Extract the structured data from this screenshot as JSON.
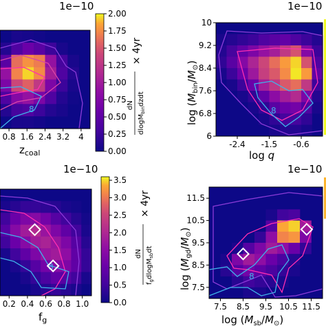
{
  "chart_data": [
    {
      "type": "heatmap",
      "panel": "top-left",
      "multiplier": "1e−10",
      "xlabel": "z_coal",
      "ylabel": "",
      "xticks": [
        "0.8",
        "1.6",
        "2.4",
        "3.2",
        "4"
      ],
      "xlim": [
        0.4,
        4.4
      ],
      "colorbar": {
        "label": "dN / dlogM_bin dzdt × 4yr",
        "ticks": [
          "0.00",
          "0.25",
          "0.50",
          "0.75",
          "1.00",
          "1.25",
          "1.50",
          "1.75",
          "2.00"
        ],
        "range": [
          0,
          2.0
        ]
      },
      "grid": [
        [
          0.0,
          0.05,
          0.04,
          0.02,
          0.0,
          0.0,
          0.0,
          0.0
        ],
        [
          0.1,
          0.3,
          0.45,
          0.35,
          0.2,
          0.05,
          0.0,
          0.0
        ],
        [
          0.35,
          1.4,
          1.65,
          1.5,
          0.7,
          0.25,
          0.05,
          0.0
        ],
        [
          0.7,
          1.55,
          1.9,
          1.6,
          0.8,
          0.3,
          0.1,
          0.0
        ],
        [
          0.55,
          1.1,
          1.3,
          1.0,
          0.55,
          0.2,
          0.05,
          0.0
        ],
        [
          0.3,
          0.6,
          0.7,
          0.55,
          0.3,
          0.1,
          0.02,
          0.0
        ],
        [
          0.1,
          0.25,
          0.3,
          0.2,
          0.1,
          0.05,
          0.0,
          0.0
        ],
        [
          0.0,
          0.05,
          0.05,
          0.03,
          0.0,
          0.0,
          0.0,
          0.0
        ]
      ],
      "contour_labels": [
        "8"
      ]
    },
    {
      "type": "heatmap",
      "panel": "top-right",
      "multiplier": "1e−10",
      "xlabel": "log q",
      "ylabel": "log (M_bin / M_⊙)",
      "xticks": [
        "-2.4",
        "-1.5",
        "-0.6"
      ],
      "xlim": [
        -3.0,
        0.0
      ],
      "yticks": [
        "6",
        "6.8",
        "7.6",
        "8.4",
        "9.2",
        "10"
      ],
      "ylim": [
        6.0,
        10.0
      ],
      "grid": [
        [
          0.0,
          0.0,
          0.0,
          0.0,
          0.0,
          0.0,
          0.0,
          0.0,
          0.0,
          0.0
        ],
        [
          0.05,
          0.1,
          0.15,
          0.2,
          0.3,
          0.35,
          0.4,
          0.3,
          0.2,
          0.1
        ],
        [
          0.1,
          0.25,
          0.4,
          0.55,
          0.7,
          0.8,
          1.0,
          1.2,
          0.6,
          0.2
        ],
        [
          0.15,
          0.35,
          0.6,
          0.85,
          1.1,
          1.4,
          1.7,
          1.9,
          1.2,
          0.3
        ],
        [
          0.05,
          0.2,
          0.45,
          0.75,
          1.05,
          1.25,
          1.6,
          1.95,
          1.7,
          0.4
        ],
        [
          0.0,
          0.05,
          0.2,
          0.45,
          0.8,
          1.0,
          1.25,
          1.4,
          1.0,
          0.2
        ],
        [
          0.0,
          0.0,
          0.05,
          0.15,
          0.4,
          0.65,
          0.8,
          0.9,
          0.55,
          0.1
        ],
        [
          0.0,
          0.0,
          0.0,
          0.05,
          0.15,
          0.35,
          0.45,
          0.5,
          0.3,
          0.05
        ],
        [
          0.0,
          0.0,
          0.0,
          0.0,
          0.05,
          0.15,
          0.25,
          0.25,
          0.15,
          0.0
        ],
        [
          0.0,
          0.0,
          0.0,
          0.0,
          0.0,
          0.05,
          0.1,
          0.1,
          0.05,
          0.0
        ]
      ],
      "contour_labels": [
        "8"
      ]
    },
    {
      "type": "heatmap",
      "panel": "bottom-left",
      "multiplier": "1e−10",
      "xlabel": "f_g",
      "ylabel": "",
      "xticks": [
        "0.2",
        "0.4",
        "0.6",
        "0.8",
        "1.0"
      ],
      "xlim": [
        0.1,
        1.1
      ],
      "colorbar": {
        "label": "dN / f_g dlogM_sb dt × 4yr",
        "ticks": [
          "0.0",
          "0.5",
          "1.0",
          "1.5",
          "2.0",
          "2.5",
          "3.0",
          "3.5"
        ],
        "range": [
          0,
          3.6
        ]
      },
      "grid": [
        [
          0.0,
          0.0,
          0.0,
          0.0,
          0.0,
          0.0,
          0.0,
          0.0,
          0.0
        ],
        [
          0.1,
          0.2,
          0.3,
          0.3,
          0.25,
          0.2,
          0.1,
          0.05,
          0.0
        ],
        [
          0.4,
          0.8,
          1.0,
          1.1,
          0.9,
          0.6,
          0.4,
          0.2,
          0.05
        ],
        [
          0.6,
          1.1,
          1.4,
          1.6,
          1.3,
          1.0,
          0.7,
          0.4,
          0.1
        ],
        [
          0.4,
          0.8,
          1.1,
          1.4,
          1.5,
          1.3,
          1.0,
          0.6,
          0.2
        ],
        [
          0.1,
          0.4,
          0.7,
          1.0,
          1.3,
          1.4,
          1.2,
          0.7,
          0.3
        ],
        [
          0.0,
          0.1,
          0.3,
          0.6,
          0.9,
          1.1,
          1.0,
          0.7,
          0.3
        ],
        [
          0.0,
          0.0,
          0.1,
          0.3,
          0.5,
          0.7,
          0.6,
          0.4,
          0.1
        ],
        [
          0.0,
          0.0,
          0.0,
          0.1,
          0.2,
          0.3,
          0.2,
          0.1,
          0.0
        ]
      ],
      "markers": [
        [
          0.48,
          0.62
        ],
        [
          0.68,
          0.28
        ]
      ],
      "contour_labels": [
        "8"
      ]
    },
    {
      "type": "heatmap",
      "panel": "bottom-right",
      "multiplier": "1e−10",
      "xlabel": "log (M_sb / M_⊙)",
      "ylabel": "log (M_gd / M_⊙)",
      "xticks": [
        "7.5",
        "8.5",
        "9.5",
        "10.5",
        "11.5"
      ],
      "xlim": [
        7.0,
        12.0
      ],
      "yticks": [
        "7.5",
        "8.5",
        "9.5",
        "10.5",
        "11.5"
      ],
      "ylim": [
        7.0,
        12.0
      ],
      "grid": [
        [
          0.0,
          0.0,
          0.0,
          0.0,
          0.0,
          0.0,
          0.0,
          0.0,
          0.0,
          0.0
        ],
        [
          0.0,
          0.0,
          0.0,
          0.0,
          0.0,
          0.0,
          0.0,
          0.0,
          0.0,
          0.0
        ],
        [
          0.0,
          0.0,
          0.0,
          0.0,
          0.0,
          0.1,
          0.4,
          0.5,
          0.0,
          0.0
        ],
        [
          0.0,
          0.0,
          0.0,
          0.0,
          0.0,
          0.6,
          3.2,
          3.4,
          1.4,
          0.0
        ],
        [
          0.0,
          0.0,
          0.0,
          0.0,
          0.3,
          1.2,
          2.8,
          3.0,
          1.0,
          0.0
        ],
        [
          0.0,
          0.0,
          0.1,
          0.6,
          1.0,
          1.4,
          1.2,
          0.8,
          0.3,
          0.0
        ],
        [
          0.0,
          0.1,
          1.0,
          1.4,
          1.2,
          0.8,
          0.5,
          0.2,
          0.0,
          0.0
        ],
        [
          0.0,
          0.2,
          0.6,
          0.9,
          0.7,
          0.5,
          0.3,
          0.1,
          0.0,
          0.0
        ],
        [
          0.0,
          0.0,
          0.2,
          0.4,
          0.3,
          0.2,
          0.1,
          0.0,
          0.0,
          0.0
        ],
        [
          0.0,
          0.0,
          0.0,
          0.1,
          0.1,
          0.0,
          0.0,
          0.0,
          0.0,
          0.0
        ]
      ],
      "markers": [
        [
          8.5,
          9.0
        ],
        [
          11.3,
          10.1
        ]
      ],
      "contour_labels": [
        "8"
      ]
    }
  ]
}
